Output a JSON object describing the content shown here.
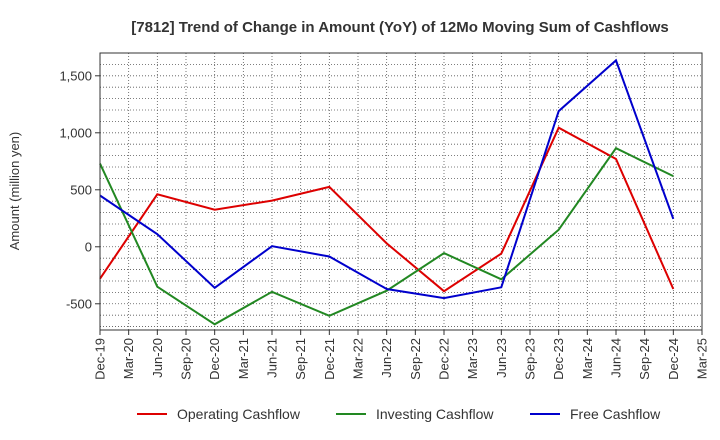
{
  "chart_data": {
    "type": "line",
    "title": "[7812]  Trend of Change in Amount (YoY) of 12Mo Moving Sum of Cashflows",
    "xlabel": "",
    "ylabel": "Amount (million yen)",
    "categories": [
      "Dec-19",
      "Mar-20",
      "Jun-20",
      "Sep-20",
      "Dec-20",
      "Mar-21",
      "Jun-21",
      "Sep-21",
      "Dec-21",
      "Mar-22",
      "Jun-22",
      "Sep-22",
      "Dec-22",
      "Mar-23",
      "Jun-23",
      "Sep-23",
      "Dec-23",
      "Mar-24",
      "Jun-24",
      "Sep-24",
      "Dec-24",
      "Mar-25"
    ],
    "ylim": [
      -730,
      1700
    ],
    "yticks": [
      -500,
      0,
      500,
      1000,
      1500
    ],
    "ytick_labels": [
      "-500",
      "0",
      "500",
      "1,000",
      "1,500"
    ],
    "grid": true,
    "legend_position": "bottom",
    "series": [
      {
        "name": "Operating Cashflow",
        "color": "#dd0000",
        "points": [
          [
            0,
            -280
          ],
          [
            2,
            460
          ],
          [
            4,
            325
          ],
          [
            6,
            405
          ],
          [
            8,
            525
          ],
          [
            10,
            30
          ],
          [
            12,
            -390
          ],
          [
            14,
            -60
          ],
          [
            16,
            1045
          ],
          [
            18,
            770
          ],
          [
            20,
            -370
          ]
        ]
      },
      {
        "name": "Investing Cashflow",
        "color": "#228822",
        "points": [
          [
            0,
            730
          ],
          [
            2,
            -350
          ],
          [
            4,
            -680
          ],
          [
            6,
            -395
          ],
          [
            8,
            -605
          ],
          [
            10,
            -385
          ],
          [
            12,
            -55
          ],
          [
            14,
            -285
          ],
          [
            16,
            150
          ],
          [
            18,
            865
          ],
          [
            20,
            620
          ]
        ]
      },
      {
        "name": "Free Cashflow",
        "color": "#0000cc",
        "points": [
          [
            0,
            450
          ],
          [
            2,
            110
          ],
          [
            4,
            -360
          ],
          [
            6,
            5
          ],
          [
            8,
            -85
          ],
          [
            10,
            -370
          ],
          [
            12,
            -450
          ],
          [
            14,
            -355
          ],
          [
            16,
            1190
          ],
          [
            18,
            1635
          ],
          [
            20,
            245
          ]
        ]
      }
    ]
  }
}
